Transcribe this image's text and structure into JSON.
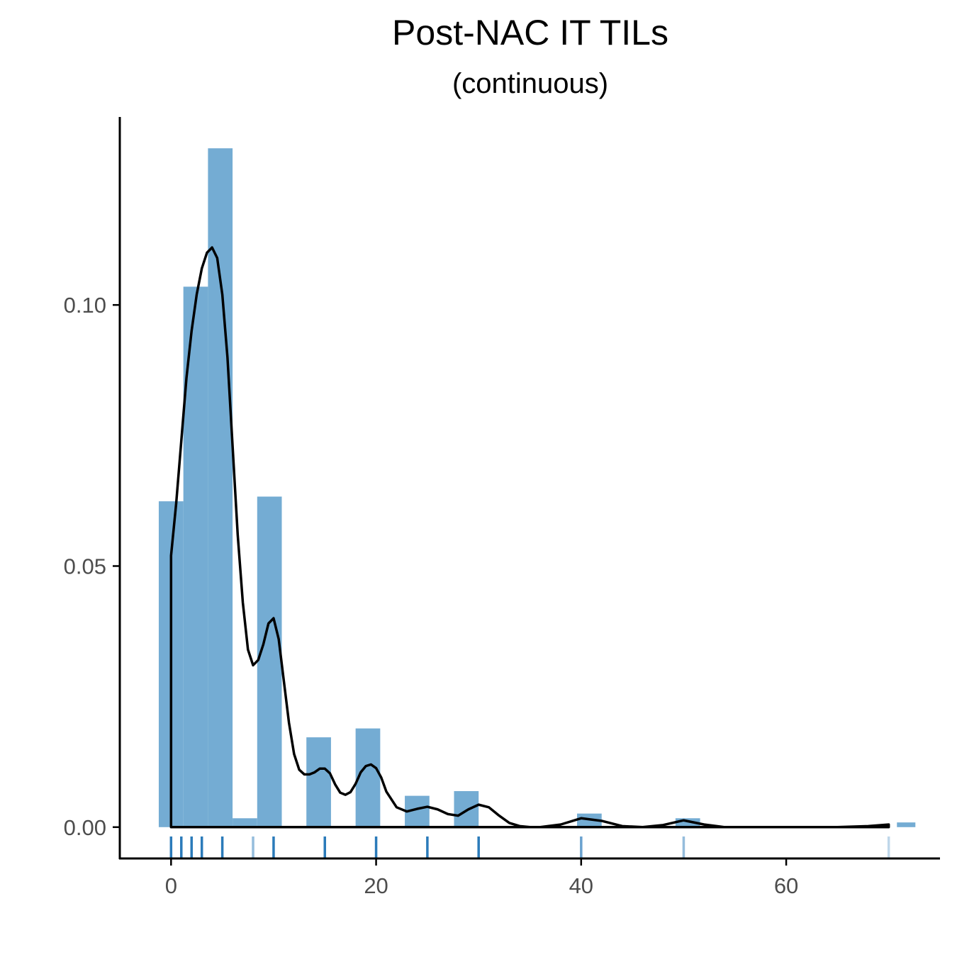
{
  "chart_data": {
    "type": "histogram",
    "title": "Post-NAC IT TILs",
    "subtitle": "(continuous)",
    "xlabel": "",
    "ylabel": "",
    "xlim": [
      -5,
      75
    ],
    "ylim": [
      -0.006,
      0.136
    ],
    "x_ticks": [
      0,
      20,
      40,
      60
    ],
    "y_ticks": [
      0.0,
      0.05,
      0.1
    ],
    "x_tick_labels": [
      "0",
      "20",
      "40",
      "60"
    ],
    "y_tick_labels": [
      "0.00",
      "0.05",
      "0.10"
    ],
    "grid": false,
    "legend": "none",
    "bar_color": "#74acd3",
    "density_color": "#000000",
    "bins": [
      {
        "start": -1.2,
        "end": 1.2,
        "density": 0.0624
      },
      {
        "start": 1.2,
        "end": 3.6,
        "density": 0.1035
      },
      {
        "start": 3.6,
        "end": 6.0,
        "density": 0.13
      },
      {
        "start": 6.0,
        "end": 8.4,
        "density": 0.0017
      },
      {
        "start": 8.4,
        "end": 10.8,
        "density": 0.0633
      },
      {
        "start": 10.8,
        "end": 13.2,
        "density": 0.0
      },
      {
        "start": 13.2,
        "end": 15.6,
        "density": 0.0172
      },
      {
        "start": 15.6,
        "end": 18.0,
        "density": 0.0
      },
      {
        "start": 18.0,
        "end": 20.4,
        "density": 0.0189
      },
      {
        "start": 20.4,
        "end": 22.8,
        "density": 0.0
      },
      {
        "start": 22.8,
        "end": 25.2,
        "density": 0.006
      },
      {
        "start": 25.2,
        "end": 27.6,
        "density": 0.0
      },
      {
        "start": 27.6,
        "end": 30.0,
        "density": 0.0069
      },
      {
        "start": 39.6,
        "end": 42.0,
        "density": 0.0026
      },
      {
        "start": 49.2,
        "end": 51.6,
        "density": 0.0017
      },
      {
        "start": 70.8,
        "end": 72.6,
        "density": 0.0009
      }
    ],
    "density_curve": {
      "x": [
        0,
        0.5,
        1,
        1.5,
        2,
        2.5,
        3,
        3.5,
        4,
        4.5,
        5,
        5.5,
        6,
        6.5,
        7,
        7.5,
        8,
        8.5,
        9,
        9.5,
        10,
        10.5,
        11,
        11.5,
        12,
        12.5,
        13,
        13.5,
        14,
        14.5,
        15,
        15.5,
        16,
        16.5,
        17,
        17.5,
        18,
        18.5,
        19,
        19.5,
        20,
        20.5,
        21,
        22,
        23,
        24,
        25,
        26,
        27,
        28,
        29,
        30,
        31,
        32,
        33,
        34,
        35,
        36,
        38,
        40,
        42,
        44,
        46,
        48,
        50,
        52,
        54,
        56,
        60,
        65,
        68,
        70
      ],
      "y": [
        0.052,
        0.062,
        0.074,
        0.086,
        0.095,
        0.102,
        0.107,
        0.11,
        0.111,
        0.109,
        0.102,
        0.09,
        0.073,
        0.056,
        0.043,
        0.034,
        0.031,
        0.032,
        0.035,
        0.039,
        0.04,
        0.036,
        0.028,
        0.02,
        0.014,
        0.011,
        0.0101,
        0.0101,
        0.0105,
        0.0112,
        0.0112,
        0.0103,
        0.0082,
        0.0066,
        0.0062,
        0.0067,
        0.0083,
        0.0105,
        0.0117,
        0.012,
        0.0113,
        0.0095,
        0.0068,
        0.0038,
        0.003,
        0.0035,
        0.0039,
        0.0034,
        0.0025,
        0.0022,
        0.0034,
        0.0043,
        0.0038,
        0.0022,
        0.0008,
        0.0002,
        0.0,
        0.0,
        0.0005,
        0.0017,
        0.0012,
        0.0002,
        0.0,
        0.0004,
        0.0013,
        0.0005,
        0.0,
        0.0,
        0.0,
        0.0,
        0.0002,
        0.0005
      ]
    },
    "rug_values": [
      0,
      1,
      2,
      3,
      5,
      8,
      10,
      15,
      20,
      25,
      30,
      40,
      50,
      70
    ],
    "rug_opacity": [
      1.0,
      1.0,
      1.0,
      1.0,
      1.0,
      0.5,
      1.0,
      1.0,
      1.0,
      1.0,
      1.0,
      0.7,
      0.5,
      0.3
    ],
    "rug_color": "#2b7bba"
  }
}
